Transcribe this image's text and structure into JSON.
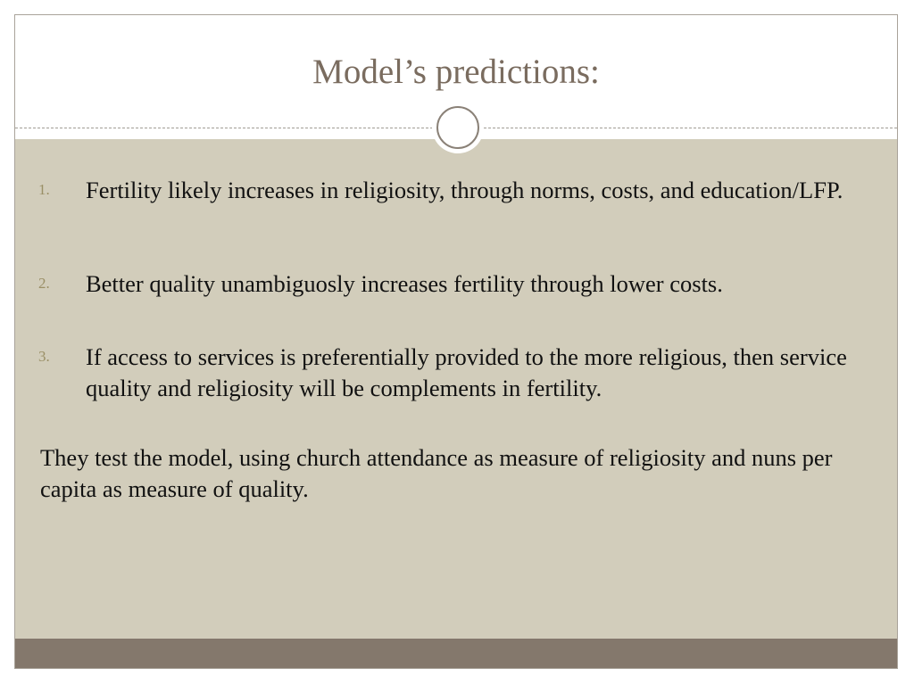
{
  "slide": {
    "title": "Model’s predictions:",
    "items": [
      {
        "number": "1.",
        "text": "Fertility likely increases in religiosity, through norms, costs, and education/LFP."
      },
      {
        "number": "2.",
        "text": "Better quality unambiguosly increases fertility through lower costs."
      },
      {
        "number": "3.",
        "text": "If access to services is preferentially provided to the more religious, then service quality and religiosity will be complements in fertility."
      }
    ],
    "closing": "They test the model, using church attendance as measure of religiosity and nuns per capita as measure of quality."
  },
  "colors": {
    "title": "#7a6c5f",
    "content_background": "#d2cdbb",
    "footer_bar": "#84786c",
    "list_number": "#9a8f66",
    "body_text": "#111111"
  }
}
